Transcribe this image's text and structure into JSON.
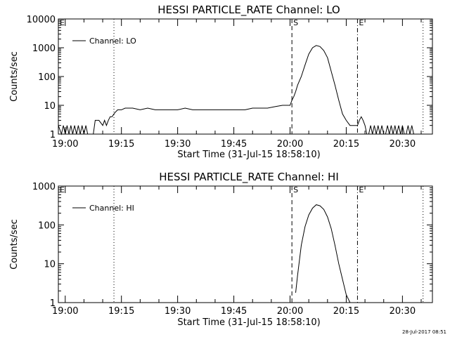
{
  "chart_data": [
    {
      "type": "line",
      "title": "HESSI PARTICLE_RATE Channel: LO",
      "xlabel": "Start Time (31-Jul-15 18:58:10)",
      "ylabel": "Counts/sec",
      "yscale": "log",
      "ylim": [
        1,
        10000
      ],
      "xlim": [
        "18:58:10",
        "20:38:00"
      ],
      "x_ticks": [
        "19:00",
        "19:15",
        "19:30",
        "19:45",
        "20:00",
        "20:15",
        "20:30"
      ],
      "y_ticks": [
        "1",
        "10",
        "100",
        "1000",
        "10000"
      ],
      "legend": {
        "position": "top-left",
        "entries": [
          "Channel: LO"
        ]
      },
      "grid": false,
      "markers": [
        {
          "time": "18:58:10",
          "style": "dotted",
          "label": "E"
        },
        {
          "time": "19:13:00",
          "style": "dotted",
          "label": ""
        },
        {
          "time": "20:00:30",
          "style": "dashed",
          "label": "S"
        },
        {
          "time": "20:18:00",
          "style": "dash-dot",
          "label": "E"
        },
        {
          "time": "20:35:30",
          "style": "dotted",
          "label": ""
        }
      ],
      "series": [
        {
          "name": "Channel: LO",
          "x": [
            "18:58:10",
            "18:59:00",
            "18:59:30",
            "19:00:00",
            "19:00:30",
            "19:01:00",
            "19:01:30",
            "19:02:00",
            "19:02:30",
            "19:03:00",
            "19:03:30",
            "19:04:00",
            "19:04:30",
            "19:05:00",
            "19:05:30",
            "19:06:00",
            "19:06:30",
            "19:07:00",
            "19:07:30",
            "19:08:00",
            "19:09:00",
            "19:10:00",
            "19:10:30",
            "19:11:00",
            "19:11:30",
            "19:12:00",
            "19:12:30",
            "19:13:00",
            "19:13:30",
            "19:14:00",
            "19:15:00",
            "19:16:00",
            "19:18:00",
            "19:20:00",
            "19:22:00",
            "19:24:00",
            "19:26:00",
            "19:28:00",
            "19:30:00",
            "19:32:00",
            "19:34:00",
            "19:36:00",
            "19:38:00",
            "19:40:00",
            "19:42:00",
            "19:44:00",
            "19:46:00",
            "19:48:00",
            "19:50:00",
            "19:52:00",
            "19:54:00",
            "19:56:00",
            "19:58:00",
            "19:59:00",
            "20:00:00",
            "20:00:30",
            "20:01:00",
            "20:01:30",
            "20:02:00",
            "20:03:00",
            "20:04:00",
            "20:05:00",
            "20:06:00",
            "20:07:00",
            "20:08:00",
            "20:09:00",
            "20:10:00",
            "20:11:00",
            "20:12:00",
            "20:13:00",
            "20:14:00",
            "20:15:00",
            "20:16:00",
            "20:17:00",
            "20:17:30",
            "20:18:00",
            "20:18:30",
            "20:19:00",
            "20:19:30",
            "20:20:00",
            "20:20:30",
            "20:21:00",
            "20:21:30",
            "20:22:00",
            "20:22:30",
            "20:23:00",
            "20:23:30",
            "20:24:00",
            "20:24:30",
            "20:25:00",
            "20:25:30",
            "20:26:00",
            "20:26:30",
            "20:27:00",
            "20:27:30",
            "20:28:00",
            "20:28:30",
            "20:29:00",
            "20:29:30",
            "20:30:00",
            "20:30:30",
            "20:31:00",
            "20:31:30",
            "20:32:00",
            "20:32:30",
            "20:33:00"
          ],
          "values": [
            2,
            1,
            2,
            1,
            2,
            1,
            2,
            1,
            2,
            1,
            2,
            1,
            2,
            1,
            2,
            1,
            1,
            1,
            1,
            3,
            3,
            2,
            3,
            2,
            3,
            4,
            4,
            5,
            6,
            7,
            7,
            8,
            8,
            7,
            8,
            7,
            7,
            7,
            7,
            8,
            7,
            7,
            7,
            7,
            7,
            7,
            7,
            7,
            8,
            8,
            8,
            9,
            10,
            10,
            10,
            15,
            20,
            30,
            50,
            100,
            250,
            600,
            1000,
            1200,
            1100,
            800,
            450,
            150,
            50,
            15,
            5,
            3,
            2,
            2,
            2,
            2,
            3,
            4,
            3,
            2,
            1,
            1,
            2,
            1,
            2,
            1,
            2,
            1,
            2,
            1,
            1,
            2,
            1,
            2,
            1,
            2,
            1,
            2,
            1,
            2,
            1,
            1,
            2,
            1,
            2,
            1
          ]
        }
      ]
    },
    {
      "type": "line",
      "title": "HESSI PARTICLE_RATE Channel: HI",
      "xlabel": "Start Time (31-Jul-15 18:58:10)",
      "ylabel": "Counts/sec",
      "yscale": "log",
      "ylim": [
        1,
        1000
      ],
      "xlim": [
        "18:58:10",
        "20:38:00"
      ],
      "x_ticks": [
        "19:00",
        "19:15",
        "19:30",
        "19:45",
        "20:00",
        "20:15",
        "20:30"
      ],
      "y_ticks": [
        "1",
        "10",
        "100",
        "1000"
      ],
      "legend": {
        "position": "top-left",
        "entries": [
          "Channel: HI"
        ]
      },
      "grid": false,
      "markers": [
        {
          "time": "18:58:10",
          "style": "dotted",
          "label": "E"
        },
        {
          "time": "19:13:00",
          "style": "dotted",
          "label": ""
        },
        {
          "time": "20:00:30",
          "style": "dashed",
          "label": "S"
        },
        {
          "time": "20:18:00",
          "style": "dash-dot",
          "label": "E"
        },
        {
          "time": "20:35:30",
          "style": "dotted",
          "label": ""
        }
      ],
      "series": [
        {
          "name": "Channel: HI",
          "x": [
            "20:01:30",
            "20:02:00",
            "20:03:00",
            "20:04:00",
            "20:05:00",
            "20:06:00",
            "20:07:00",
            "20:08:00",
            "20:09:00",
            "20:10:00",
            "20:11:00",
            "20:12:00",
            "20:13:00",
            "20:14:00",
            "20:15:00",
            "20:16:00"
          ],
          "values": [
            1.8,
            5,
            30,
            90,
            180,
            270,
            330,
            310,
            250,
            160,
            80,
            30,
            10,
            4,
            1.6,
            1
          ]
        }
      ]
    }
  ],
  "footer": {
    "timestamp": "28-Jul-2017 08:51"
  }
}
